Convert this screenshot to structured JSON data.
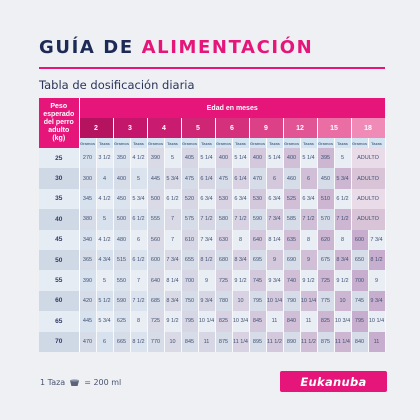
{
  "title": {
    "part1": "GUÍA DE",
    "part2": "ALIMENTACIÓN"
  },
  "subtitle": "Tabla de dosificación diaria",
  "table": {
    "weight_header": [
      "Peso",
      "esperado",
      "del perro",
      "adulto",
      "(kg)"
    ],
    "age_header": "Edad en meses",
    "ages": [
      "2",
      "3",
      "4",
      "5",
      "6",
      "9",
      "12",
      "15",
      "18"
    ],
    "unit_grams": "Gramos",
    "unit_cups": "Tazas",
    "rows": [
      {
        "weight": "25",
        "cells": [
          [
            "270",
            "3 1/2"
          ],
          [
            "350",
            "4 1/2"
          ],
          [
            "390",
            "5"
          ],
          [
            "405",
            "5 1/4"
          ],
          [
            "400",
            "5 1/4"
          ],
          [
            "400",
            "5 1/4"
          ],
          [
            "400",
            "5 1/4"
          ],
          [
            "395",
            "5"
          ],
          [
            "ADULTO",
            ""
          ]
        ]
      },
      {
        "weight": "30",
        "cells": [
          [
            "300",
            "4"
          ],
          [
            "400",
            "5"
          ],
          [
            "445",
            "5 3/4"
          ],
          [
            "475",
            "6 1/4"
          ],
          [
            "475",
            "6 1/4"
          ],
          [
            "470",
            "6"
          ],
          [
            "460",
            "6"
          ],
          [
            "450",
            "5 3/4"
          ],
          [
            "ADULTO",
            ""
          ]
        ]
      },
      {
        "weight": "35",
        "cells": [
          [
            "345",
            "4 1/2"
          ],
          [
            "450",
            "5 3/4"
          ],
          [
            "500",
            "6 1/2"
          ],
          [
            "520",
            "6 3/4"
          ],
          [
            "530",
            "6 3/4"
          ],
          [
            "530",
            "6 3/4"
          ],
          [
            "525",
            "6 3/4"
          ],
          [
            "510",
            "6 1/2"
          ],
          [
            "ADULTO",
            ""
          ]
        ]
      },
      {
        "weight": "40",
        "cells": [
          [
            "380",
            "5"
          ],
          [
            "500",
            "6 1/2"
          ],
          [
            "555",
            "7"
          ],
          [
            "575",
            "7 1/2"
          ],
          [
            "580",
            "7 1/2"
          ],
          [
            "590",
            "7 3/4"
          ],
          [
            "585",
            "7 1/2"
          ],
          [
            "570",
            "7 1/2"
          ],
          [
            "ADULTO",
            ""
          ]
        ]
      },
      {
        "weight": "45",
        "cells": [
          [
            "340",
            "4 1/2"
          ],
          [
            "480",
            "6"
          ],
          [
            "560",
            "7"
          ],
          [
            "610",
            "7 3/4"
          ],
          [
            "630",
            "8"
          ],
          [
            "640",
            "8 1/4"
          ],
          [
            "635",
            "8"
          ],
          [
            "620",
            "8"
          ],
          [
            "600",
            "7 3/4"
          ]
        ]
      },
      {
        "weight": "50",
        "cells": [
          [
            "365",
            "4 3/4"
          ],
          [
            "515",
            "6 1/2"
          ],
          [
            "600",
            "7 3/4"
          ],
          [
            "655",
            "8 1/2"
          ],
          [
            "680",
            "8 3/4"
          ],
          [
            "695",
            "9"
          ],
          [
            "690",
            "9"
          ],
          [
            "675",
            "8 3/4"
          ],
          [
            "650",
            "8 1/2"
          ]
        ]
      },
      {
        "weight": "55",
        "cells": [
          [
            "390",
            "5"
          ],
          [
            "550",
            "7"
          ],
          [
            "640",
            "8 1/4"
          ],
          [
            "700",
            "9"
          ],
          [
            "725",
            "9 1/2"
          ],
          [
            "745",
            "9 3/4"
          ],
          [
            "740",
            "9 1/2"
          ],
          [
            "725",
            "9 1/2"
          ],
          [
            "700",
            "9"
          ]
        ]
      },
      {
        "weight": "60",
        "cells": [
          [
            "420",
            "5 1/2"
          ],
          [
            "590",
            "7 1/2"
          ],
          [
            "685",
            "8 3/4"
          ],
          [
            "750",
            "9 3/4"
          ],
          [
            "780",
            "10"
          ],
          [
            "795",
            "10 1/4"
          ],
          [
            "790",
            "10 1/4"
          ],
          [
            "775",
            "10"
          ],
          [
            "745",
            "9 3/4"
          ]
        ]
      },
      {
        "weight": "65",
        "cells": [
          [
            "445",
            "5 3/4"
          ],
          [
            "625",
            "8"
          ],
          [
            "725",
            "9 1/2"
          ],
          [
            "795",
            "10 1/4"
          ],
          [
            "825",
            "10 3/4"
          ],
          [
            "845",
            "11"
          ],
          [
            "840",
            "11"
          ],
          [
            "825",
            "10 3/4"
          ],
          [
            "795",
            "10 1/4"
          ]
        ]
      },
      {
        "weight": "70",
        "cells": [
          [
            "470",
            "6"
          ],
          [
            "665",
            "8 1/2"
          ],
          [
            "770",
            "10"
          ],
          [
            "845",
            "11"
          ],
          [
            "875",
            "11 1/4"
          ],
          [
            "895",
            "11 1/2"
          ],
          [
            "890",
            "11 1/2"
          ],
          [
            "875",
            "11 1/4"
          ],
          [
            "840",
            "11"
          ]
        ]
      }
    ]
  },
  "footer": {
    "cup_prefix": "1 Taza",
    "cup_suffix": "= 200 ml",
    "icon": "cup-icon"
  },
  "logo": "Eukanuba",
  "colors": {
    "magenta": "#e5157a",
    "navy": "#1d2a55",
    "background": "#eef0f4"
  }
}
